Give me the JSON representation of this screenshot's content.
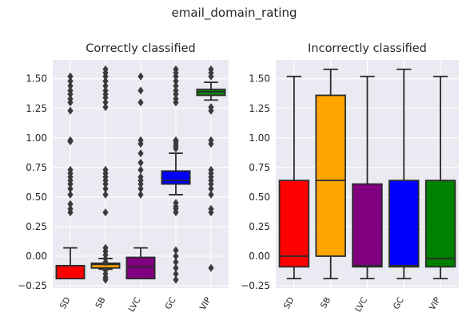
{
  "suptitle": "email_domain_rating",
  "chart_data": [
    {
      "type": "box",
      "title": "Correctly classified",
      "categories": [
        "SD",
        "SB",
        "LVC",
        "GC",
        "VIP"
      ],
      "ylim": [
        -0.27,
        1.66
      ],
      "yticks": [
        -0.25,
        0.0,
        0.25,
        0.5,
        0.75,
        1.0,
        1.25,
        1.5
      ],
      "ytick_labels": [
        "−0.25",
        "0.00",
        "0.25",
        "0.50",
        "0.75",
        "1.00",
        "1.25",
        "1.50"
      ],
      "grid": true,
      "boxes": [
        {
          "name": "SD",
          "color": "#ff0000",
          "q1": -0.19,
          "median": -0.08,
          "q3": -0.08,
          "whisker_low": -0.19,
          "whisker_high": 0.07,
          "outliers": [
            0.37,
            0.4,
            0.44,
            0.52,
            0.57,
            0.61,
            0.64,
            0.67,
            0.7,
            0.73,
            0.97,
            0.98,
            1.23,
            1.3,
            1.33,
            1.37,
            1.4,
            1.44,
            1.48,
            1.52
          ]
        },
        {
          "name": "SB",
          "color": "#ffa500",
          "q1": -0.1,
          "median": -0.07,
          "q3": -0.06,
          "whisker_low": -0.11,
          "whisker_high": -0.02,
          "outliers": [
            -0.2,
            -0.18,
            -0.15,
            -0.12,
            -0.05,
            -0.02,
            0.01,
            0.04,
            0.07,
            0.37,
            0.52,
            0.57,
            0.61,
            0.64,
            0.67,
            0.7,
            0.73,
            1.26,
            1.3,
            1.34,
            1.37,
            1.4,
            1.44,
            1.48,
            1.52,
            1.55,
            1.58
          ]
        },
        {
          "name": "LVC",
          "color": "#800080",
          "q1": -0.19,
          "median": -0.09,
          "q3": -0.01,
          "whisker_low": -0.19,
          "whisker_high": 0.07,
          "outliers": [
            0.52,
            0.57,
            0.61,
            0.64,
            0.67,
            0.73,
            0.79,
            0.87,
            0.95,
            0.98,
            1.3,
            1.4,
            1.52
          ]
        },
        {
          "name": "GC",
          "color": "#0000ff",
          "q1": 0.61,
          "median": 0.64,
          "q3": 0.72,
          "whisker_low": 0.52,
          "whisker_high": 0.87,
          "outliers": [
            -0.2,
            -0.15,
            -0.1,
            -0.05,
            0.0,
            0.05,
            0.37,
            0.4,
            0.42,
            0.45,
            0.91,
            0.93,
            0.95,
            0.97,
            0.98,
            1.3,
            1.33,
            1.37,
            1.4,
            1.44,
            1.48,
            1.52,
            1.55,
            1.58
          ]
        },
        {
          "name": "VIP",
          "color": "#008000",
          "q1": 1.36,
          "median": 1.39,
          "q3": 1.41,
          "whisker_low": 1.32,
          "whisker_high": 1.47,
          "outliers": [
            -0.1,
            0.37,
            0.4,
            0.52,
            0.57,
            0.61,
            0.64,
            0.67,
            0.7,
            0.73,
            0.95,
            0.98,
            1.23,
            1.26,
            1.52,
            1.55,
            1.58
          ]
        }
      ]
    },
    {
      "type": "box",
      "title": "Incorrectly classified",
      "categories": [
        "SD",
        "SB",
        "LVC",
        "GC",
        "VIP"
      ],
      "ylim": [
        -0.27,
        1.66
      ],
      "yticks": [
        -0.25,
        0.0,
        0.25,
        0.5,
        0.75,
        1.0,
        1.25,
        1.5
      ],
      "ytick_labels": [
        "−0.25",
        "0.00",
        "0.25",
        "0.50",
        "0.75",
        "1.00",
        "1.25",
        "1.50"
      ],
      "grid": true,
      "boxes": [
        {
          "name": "SD",
          "color": "#ff0000",
          "q1": -0.09,
          "median": 0.0,
          "q3": 0.64,
          "whisker_low": -0.19,
          "whisker_high": 1.52,
          "outliers": []
        },
        {
          "name": "SB",
          "color": "#ffa500",
          "q1": 0.0,
          "median": 0.64,
          "q3": 1.36,
          "whisker_low": -0.19,
          "whisker_high": 1.58,
          "outliers": []
        },
        {
          "name": "LVC",
          "color": "#800080",
          "q1": -0.09,
          "median": -0.08,
          "q3": 0.61,
          "whisker_low": -0.19,
          "whisker_high": 1.52,
          "outliers": []
        },
        {
          "name": "GC",
          "color": "#0000ff",
          "q1": -0.09,
          "median": -0.08,
          "q3": 0.64,
          "whisker_low": -0.19,
          "whisker_high": 1.58,
          "outliers": []
        },
        {
          "name": "VIP",
          "color": "#008000",
          "q1": -0.09,
          "median": -0.02,
          "q3": 0.64,
          "whisker_low": -0.19,
          "whisker_high": 1.52,
          "outliers": []
        }
      ]
    }
  ]
}
